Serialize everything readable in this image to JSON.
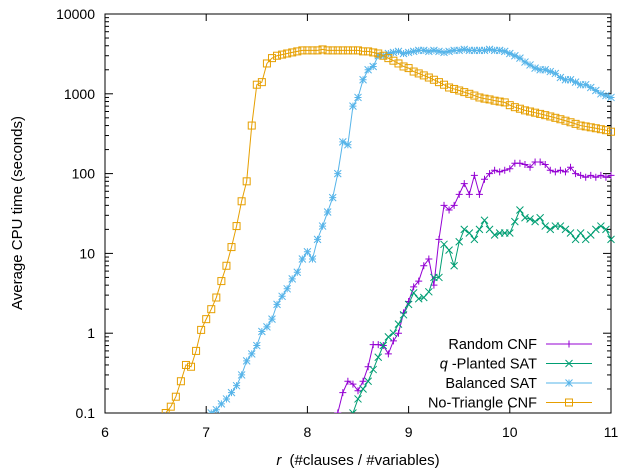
{
  "chart_data": {
    "type": "line",
    "title": "",
    "xlabel_prefix": "r",
    "xlabel": "(#clauses / #variables)",
    "ylabel": "Average CPU time (seconds)",
    "xlim": [
      6,
      11
    ],
    "ylim": [
      0.1,
      10000
    ],
    "y_scale": "log",
    "x_ticks": [
      6,
      7,
      8,
      9,
      10,
      11
    ],
    "x_tick_labels": [
      "6",
      "7",
      "8",
      "9",
      "10",
      "11"
    ],
    "y_ticks": [
      0.1,
      1,
      10,
      100,
      1000,
      10000
    ],
    "y_tick_labels": [
      "0.1",
      "1",
      "10",
      "100",
      "1000",
      "10000"
    ],
    "grid": false,
    "legend_position": "bottom-right",
    "series": [
      {
        "name": "Random CNF",
        "prefix": "",
        "color": "#9400d3",
        "marker": "plus",
        "x": [
          8.3,
          8.35,
          8.4,
          8.45,
          8.5,
          8.55,
          8.6,
          8.65,
          8.7,
          8.75,
          8.8,
          8.85,
          8.9,
          8.95,
          9.0,
          9.05,
          9.1,
          9.15,
          9.2,
          9.25,
          9.3,
          9.35,
          9.4,
          9.45,
          9.5,
          9.55,
          9.6,
          9.65,
          9.7,
          9.75,
          9.8,
          9.85,
          9.9,
          9.95,
          10.0,
          10.05,
          10.1,
          10.15,
          10.2,
          10.25,
          10.3,
          10.35,
          10.4,
          10.45,
          10.5,
          10.55,
          10.6,
          10.65,
          10.7,
          10.75,
          10.8,
          10.85,
          10.9,
          10.95,
          11.0
        ],
        "y": [
          0.1,
          0.18,
          0.25,
          0.23,
          0.19,
          0.25,
          0.38,
          0.72,
          0.72,
          0.7,
          0.55,
          0.8,
          1.0,
          1.8,
          2.5,
          3.8,
          4.5,
          7.0,
          8.5,
          4.0,
          15,
          40,
          35,
          40,
          55,
          75,
          55,
          95,
          55,
          85,
          100,
          110,
          105,
          110,
          115,
          135,
          135,
          130,
          120,
          140,
          140,
          130,
          110,
          105,
          110,
          105,
          120,
          100,
          95,
          90,
          95,
          90,
          95,
          90,
          95
        ]
      },
      {
        "name": "-Planted SAT",
        "prefix": "q",
        "color": "#009e73",
        "marker": "cross",
        "x": [
          8.45,
          8.5,
          8.55,
          8.6,
          8.65,
          8.7,
          8.75,
          8.8,
          8.85,
          8.9,
          8.95,
          9.0,
          9.05,
          9.1,
          9.15,
          9.2,
          9.25,
          9.3,
          9.35,
          9.4,
          9.45,
          9.5,
          9.55,
          9.6,
          9.65,
          9.7,
          9.75,
          9.8,
          9.85,
          9.9,
          9.95,
          10.0,
          10.05,
          10.1,
          10.15,
          10.2,
          10.25,
          10.3,
          10.35,
          10.4,
          10.45,
          10.5,
          10.55,
          10.6,
          10.65,
          10.7,
          10.75,
          10.8,
          10.85,
          10.9,
          10.95,
          11.0
        ],
        "y": [
          0.1,
          0.15,
          0.2,
          0.25,
          0.35,
          0.5,
          0.7,
          0.9,
          1.0,
          1.3,
          1.7,
          2.3,
          3.2,
          2.7,
          2.8,
          3.3,
          5,
          5,
          13,
          11,
          7,
          14,
          20,
          18,
          15,
          20,
          26,
          20,
          17,
          18,
          18,
          18,
          25,
          35,
          28,
          27,
          25,
          28,
          22,
          20,
          22,
          22,
          20,
          18,
          15,
          18,
          15,
          17,
          20,
          22,
          20,
          15
        ]
      },
      {
        "name": "Balanced SAT",
        "prefix": "",
        "color": "#56b4e9",
        "marker": "star",
        "x": [
          7.05,
          7.1,
          7.15,
          7.2,
          7.25,
          7.3,
          7.35,
          7.4,
          7.45,
          7.5,
          7.55,
          7.6,
          7.65,
          7.7,
          7.75,
          7.8,
          7.85,
          7.9,
          7.95,
          8.0,
          8.05,
          8.1,
          8.15,
          8.2,
          8.25,
          8.3,
          8.35,
          8.4,
          8.45,
          8.5,
          8.55,
          8.6,
          8.65,
          8.7,
          8.75,
          8.8,
          8.85,
          8.9,
          8.95,
          9.0,
          9.05,
          9.1,
          9.15,
          9.2,
          9.25,
          9.3,
          9.35,
          9.4,
          9.45,
          9.5,
          9.55,
          9.6,
          9.65,
          9.7,
          9.75,
          9.8,
          9.85,
          9.9,
          9.95,
          10.0,
          10.05,
          10.1,
          10.15,
          10.2,
          10.25,
          10.3,
          10.35,
          10.4,
          10.45,
          10.5,
          10.55,
          10.6,
          10.65,
          10.7,
          10.75,
          10.8,
          10.85,
          10.9,
          10.95,
          11.0
        ],
        "y": [
          0.1,
          0.11,
          0.13,
          0.15,
          0.18,
          0.22,
          0.3,
          0.45,
          0.55,
          0.7,
          1.05,
          1.2,
          1.5,
          2.3,
          2.9,
          3.6,
          4.8,
          5.8,
          8.5,
          10.5,
          8.5,
          15,
          22,
          33,
          50,
          100,
          250,
          230,
          700,
          900,
          1500,
          2000,
          2200,
          3000,
          3000,
          3200,
          3300,
          3400,
          3200,
          3300,
          3400,
          3500,
          3500,
          3400,
          3500,
          3400,
          3300,
          3400,
          3500,
          3500,
          3600,
          3500,
          3500,
          3500,
          3500,
          3600,
          3500,
          3500,
          3400,
          3200,
          3000,
          2800,
          2500,
          2300,
          2100,
          2000,
          2000,
          1900,
          1800,
          1600,
          1500,
          1500,
          1400,
          1300,
          1300,
          1200,
          1100,
          1000,
          950,
          900
        ]
      },
      {
        "name": "No-Triangle CNF",
        "prefix": "",
        "color": "#e69f00",
        "marker": "square",
        "x": [
          6.6,
          6.65,
          6.7,
          6.75,
          6.8,
          6.85,
          6.9,
          6.95,
          7.0,
          7.05,
          7.1,
          7.15,
          7.2,
          7.25,
          7.3,
          7.35,
          7.4,
          7.45,
          7.5,
          7.55,
          7.6,
          7.65,
          7.7,
          7.75,
          7.8,
          7.85,
          7.9,
          7.95,
          8.0,
          8.05,
          8.1,
          8.15,
          8.2,
          8.25,
          8.3,
          8.35,
          8.4,
          8.45,
          8.5,
          8.55,
          8.6,
          8.65,
          8.7,
          8.75,
          8.8,
          8.85,
          8.9,
          8.95,
          9.0,
          9.05,
          9.1,
          9.15,
          9.2,
          9.25,
          9.3,
          9.35,
          9.4,
          9.45,
          9.5,
          9.55,
          9.6,
          9.65,
          9.7,
          9.75,
          9.8,
          9.85,
          9.9,
          9.95,
          10.0,
          10.05,
          10.1,
          10.15,
          10.2,
          10.25,
          10.3,
          10.35,
          10.4,
          10.45,
          10.5,
          10.55,
          10.6,
          10.65,
          10.7,
          10.75,
          10.8,
          10.85,
          10.9,
          10.95,
          11.0
        ],
        "y": [
          0.1,
          0.12,
          0.16,
          0.25,
          0.4,
          0.38,
          0.6,
          1.1,
          1.5,
          2.0,
          2.8,
          4.5,
          7,
          12,
          22,
          45,
          80,
          400,
          1300,
          1400,
          2400,
          2800,
          3000,
          3100,
          3200,
          3300,
          3400,
          3500,
          3500,
          3500,
          3500,
          3600,
          3500,
          3500,
          3500,
          3500,
          3500,
          3500,
          3500,
          3400,
          3400,
          3300,
          3200,
          3000,
          2800,
          2600,
          2400,
          2200,
          2100,
          1900,
          1800,
          1700,
          1600,
          1500,
          1400,
          1300,
          1200,
          1150,
          1100,
          1050,
          1000,
          950,
          900,
          870,
          850,
          820,
          800,
          780,
          720,
          680,
          650,
          620,
          600,
          580,
          560,
          540,
          520,
          500,
          480,
          460,
          440,
          420,
          400,
          390,
          380,
          370,
          360,
          350,
          335
        ]
      }
    ]
  }
}
